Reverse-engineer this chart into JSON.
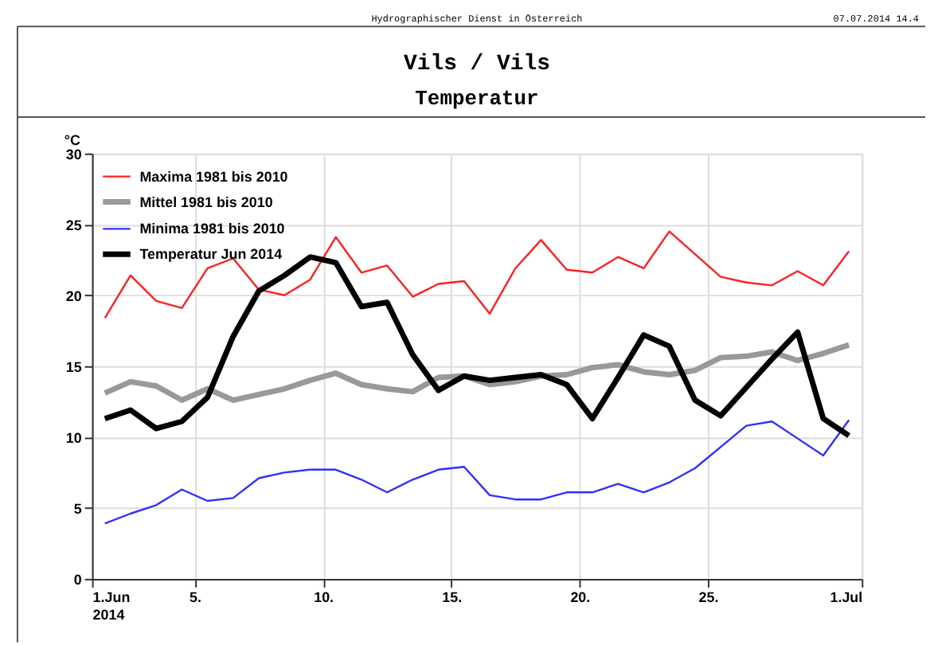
{
  "chart_data": {
    "type": "line",
    "title": "Vils / Vils",
    "subtitle": "Temperatur",
    "ylabel": "°C",
    "annotations": [
      "Hydrographischer Dienst in Österreich",
      "07.07.2014 14.4"
    ],
    "x": [
      "2014-06-01T12:00",
      "2014-06-02T12:00",
      "2014-06-03T12:00",
      "2014-06-04T12:00",
      "2014-06-05T12:00",
      "2014-06-06T12:00",
      "2014-06-07T12:00",
      "2014-06-08T12:00",
      "2014-06-09T12:00",
      "2014-06-10T12:00",
      "2014-06-11T12:00",
      "2014-06-12T12:00",
      "2014-06-13T12:00",
      "2014-06-14T12:00",
      "2014-06-15T12:00",
      "2014-06-16T12:00",
      "2014-06-17T12:00",
      "2014-06-18T12:00",
      "2014-06-19T12:00",
      "2014-06-20T12:00",
      "2014-06-21T12:00",
      "2014-06-22T12:00",
      "2014-06-23T12:00",
      "2014-06-24T12:00",
      "2014-06-25T12:00",
      "2014-06-26T12:00",
      "2014-06-27T12:00",
      "2014-06-28T12:00",
      "2014-06-29T12:00",
      "2014-06-30T12:00"
    ],
    "series": [
      {
        "name": "Maxima 1981 bis 2010",
        "color": "#ff2020",
        "values": [
          18.4,
          21.4,
          19.6,
          19.1,
          21.9,
          22.6,
          20.4,
          20.0,
          21.1,
          24.1,
          21.6,
          22.1,
          19.9,
          20.8,
          21.0,
          18.7,
          21.9,
          23.9,
          21.8,
          21.6,
          22.7,
          21.9,
          24.5,
          22.9,
          21.3,
          20.9,
          20.7,
          21.7,
          20.7,
          23.1
        ]
      },
      {
        "name": "Mittel 1981 bis 2010",
        "color": "#999999",
        "values": [
          13.1,
          13.9,
          13.6,
          12.6,
          13.4,
          12.6,
          13.0,
          13.4,
          14.0,
          14.5,
          13.7,
          13.4,
          13.2,
          14.2,
          14.3,
          13.7,
          13.9,
          14.3,
          14.4,
          14.9,
          15.1,
          14.6,
          14.4,
          14.7,
          15.6,
          15.7,
          16.0,
          15.4,
          15.9,
          16.5
        ]
      },
      {
        "name": "Minima 1981 bis 2010",
        "color": "#3030ff",
        "values": [
          3.9,
          4.6,
          5.2,
          6.3,
          5.5,
          5.7,
          7.1,
          7.5,
          7.7,
          7.7,
          7.0,
          6.1,
          7.0,
          7.7,
          7.9,
          5.9,
          5.6,
          5.6,
          6.1,
          6.1,
          6.7,
          6.1,
          6.8,
          7.8,
          9.3,
          10.8,
          11.1,
          9.9,
          8.7,
          11.2
        ]
      },
      {
        "name": "Temperatur Jun 2014",
        "color": "#000000",
        "values": [
          11.3,
          11.9,
          10.6,
          11.1,
          12.8,
          17.1,
          20.3,
          21.4,
          22.7,
          22.3,
          19.2,
          19.5,
          15.8,
          13.3,
          14.3,
          14.0,
          14.2,
          14.4,
          13.7,
          11.3,
          14.2,
          17.2,
          16.4,
          12.6,
          11.5,
          13.5,
          15.5,
          17.4,
          11.3,
          10.1
        ]
      }
    ],
    "xlim": [
      "2014-06-01",
      "2014-07-01"
    ],
    "xticks": [
      {
        "value": "2014-06-01",
        "label": "1.Jun\n2014"
      },
      {
        "value": "2014-06-05",
        "label": "5."
      },
      {
        "value": "2014-06-10",
        "label": "10."
      },
      {
        "value": "2014-06-15",
        "label": "15."
      },
      {
        "value": "2014-06-20",
        "label": "20."
      },
      {
        "value": "2014-06-25",
        "label": "25."
      },
      {
        "value": "2014-07-01",
        "label": "1.Jul"
      }
    ],
    "ylim": [
      0,
      30
    ],
    "yticks": [
      0,
      5,
      10,
      15,
      20,
      25,
      30
    ],
    "grid": true,
    "legend": "top left",
    "line_style": "solid",
    "marker": "none"
  }
}
